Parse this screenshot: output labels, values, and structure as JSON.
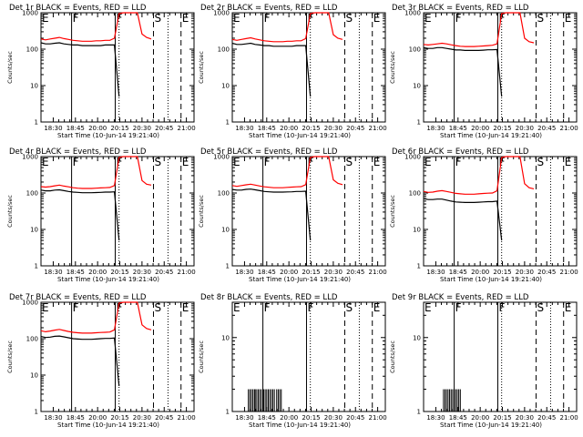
{
  "figure": {
    "type": "line",
    "y_scale": "log",
    "colors": {
      "events": "#000000",
      "lld": "#ff0000",
      "axes": "#000000",
      "background": "#ffffff"
    }
  },
  "chart_data": [
    {
      "type": "line",
      "title": "Det 1r  BLACK = Events, RED = LLD",
      "ylabel": "Counts/sec",
      "xlabel": "Start Time (10-Jun-14 19:21:40)",
      "xtick_labels": [
        "18:30",
        "18:45",
        "20:00",
        "20:15",
        "20:30",
        "20:45",
        "21:00"
      ],
      "ytick_labels": [
        "1",
        "10",
        "100",
        "1000"
      ],
      "ylim": [
        1,
        1000
      ],
      "markers": [
        {
          "label": "E",
          "style": "solid",
          "t": 0.0
        },
        {
          "label": "F",
          "style": "solid",
          "t": 0.2
        },
        {
          "label": "F",
          "style": "solid",
          "t": 0.485
        },
        {
          "label": "S",
          "style": "dashed",
          "t": 0.735
        },
        {
          "label": "E",
          "style": "dashed",
          "t": 0.915
        }
      ],
      "dotted_lines_t": [
        0.51,
        0.83
      ],
      "series": [
        {
          "name": "Events",
          "color": "#000000",
          "t_start": 0.0,
          "values": [
            150,
            140,
            140,
            145,
            150,
            140,
            135,
            130,
            130,
            125,
            125,
            125,
            125,
            125,
            130,
            130,
            130,
            5
          ]
        },
        {
          "name": "LLD",
          "color": "#ff0000",
          "t_start": 0.0,
          "values": [
            190,
            180,
            190,
            200,
            210,
            195,
            185,
            175,
            170,
            165,
            165,
            165,
            170,
            170,
            175,
            175,
            200,
            950,
            1000,
            1000,
            1000,
            1000,
            260,
            210,
            190
          ]
        }
      ]
    },
    {
      "type": "line",
      "title": "Det 2r  BLACK = Events, RED = LLD",
      "ylabel": "Counts/sec",
      "xlabel": "Start Time (10-Jun-14 19:21:40)",
      "xtick_labels": [
        "18:30",
        "18:45",
        "20:00",
        "20:15",
        "20:30",
        "20:45",
        "21:00"
      ],
      "ytick_labels": [
        "1",
        "10",
        "100",
        "1000"
      ],
      "ylim": [
        1,
        1000
      ],
      "markers": [
        {
          "label": "E",
          "style": "solid",
          "t": 0.0
        },
        {
          "label": "F",
          "style": "solid",
          "t": 0.2
        },
        {
          "label": "F",
          "style": "solid",
          "t": 0.485
        },
        {
          "label": "S",
          "style": "dashed",
          "t": 0.735
        },
        {
          "label": "E",
          "style": "dashed",
          "t": 0.915
        }
      ],
      "dotted_lines_t": [
        0.51,
        0.83
      ],
      "series": [
        {
          "name": "Events",
          "color": "#000000",
          "t_start": 0.0,
          "values": [
            145,
            135,
            135,
            140,
            145,
            135,
            130,
            125,
            125,
            120,
            120,
            120,
            120,
            120,
            125,
            125,
            125,
            5
          ]
        },
        {
          "name": "LLD",
          "color": "#ff0000",
          "t_start": 0.0,
          "values": [
            185,
            175,
            185,
            195,
            205,
            190,
            180,
            170,
            165,
            160,
            160,
            160,
            165,
            165,
            170,
            170,
            195,
            950,
            1000,
            1000,
            1000,
            1000,
            250,
            200,
            185
          ]
        }
      ]
    },
    {
      "type": "line",
      "title": "Det 3r  BLACK = Events, RED = LLD",
      "ylabel": "Counts/sec",
      "xlabel": "Start Time (10-Jun-14 19:21:40)",
      "xtick_labels": [
        "18:30",
        "18:45",
        "20:00",
        "20:15",
        "20:30",
        "20:45",
        "21:00"
      ],
      "ytick_labels": [
        "1",
        "10",
        "100",
        "1000"
      ],
      "ylim": [
        1,
        1000
      ],
      "markers": [
        {
          "label": "E",
          "style": "solid",
          "t": 0.0
        },
        {
          "label": "F",
          "style": "solid",
          "t": 0.2
        },
        {
          "label": "F",
          "style": "solid",
          "t": 0.485
        },
        {
          "label": "S",
          "style": "dashed",
          "t": 0.735
        },
        {
          "label": "E",
          "style": "dashed",
          "t": 0.915
        }
      ],
      "dotted_lines_t": [
        0.51,
        0.83
      ],
      "series": [
        {
          "name": "Events",
          "color": "#000000",
          "t_start": 0.0,
          "values": [
            110,
            105,
            105,
            110,
            110,
            105,
            100,
            95,
            95,
            92,
            92,
            92,
            92,
            94,
            96,
            96,
            98,
            5
          ]
        },
        {
          "name": "LLD",
          "color": "#ff0000",
          "t_start": 0.0,
          "values": [
            135,
            130,
            135,
            140,
            145,
            140,
            132,
            125,
            120,
            118,
            118,
            118,
            120,
            122,
            125,
            128,
            140,
            950,
            1000,
            1000,
            1000,
            1000,
            200,
            160,
            150
          ]
        }
      ]
    },
    {
      "type": "line",
      "title": "Det 4r  BLACK = Events, RED = LLD",
      "ylabel": "Counts/sec",
      "xlabel": "Start Time (10-Jun-14 19:21:40)",
      "xtick_labels": [
        "18:30",
        "18:45",
        "20:00",
        "20:15",
        "20:30",
        "20:45",
        "21:00"
      ],
      "ytick_labels": [
        "1",
        "10",
        "100",
        "1000"
      ],
      "ylim": [
        1,
        1000
      ],
      "markers": [
        {
          "label": "E",
          "style": "solid",
          "t": 0.0
        },
        {
          "label": "F",
          "style": "solid",
          "t": 0.2
        },
        {
          "label": "F",
          "style": "solid",
          "t": 0.485
        },
        {
          "label": "S",
          "style": "dashed",
          "t": 0.735
        },
        {
          "label": "E",
          "style": "dashed",
          "t": 0.915
        }
      ],
      "dotted_lines_t": [
        0.51,
        0.83
      ],
      "series": [
        {
          "name": "Events",
          "color": "#000000",
          "t_start": 0.0,
          "values": [
            120,
            115,
            115,
            120,
            122,
            116,
            110,
            106,
            104,
            102,
            102,
            102,
            103,
            104,
            106,
            106,
            108,
            5
          ]
        },
        {
          "name": "LLD",
          "color": "#ff0000",
          "t_start": 0.0,
          "values": [
            150,
            145,
            150,
            158,
            165,
            155,
            148,
            140,
            136,
            133,
            133,
            133,
            136,
            138,
            140,
            142,
            160,
            950,
            1000,
            1000,
            1000,
            1000,
            220,
            175,
            165
          ]
        }
      ]
    },
    {
      "type": "line",
      "title": "Det 5r  BLACK = Events, RED = LLD",
      "ylabel": "Counts/sec",
      "xlabel": "Start Time (10-Jun-14 19:21:40)",
      "xtick_labels": [
        "18:30",
        "18:45",
        "20:00",
        "20:15",
        "20:30",
        "20:45",
        "21:00"
      ],
      "ytick_labels": [
        "1",
        "10",
        "100",
        "1000"
      ],
      "ylim": [
        1,
        1000
      ],
      "markers": [
        {
          "label": "E",
          "style": "solid",
          "t": 0.0
        },
        {
          "label": "F",
          "style": "solid",
          "t": 0.2
        },
        {
          "label": "F",
          "style": "solid",
          "t": 0.485
        },
        {
          "label": "S",
          "style": "dashed",
          "t": 0.735
        },
        {
          "label": "E",
          "style": "dashed",
          "t": 0.915
        }
      ],
      "dotted_lines_t": [
        0.51,
        0.83
      ],
      "series": [
        {
          "name": "Events",
          "color": "#000000",
          "t_start": 0.0,
          "values": [
            125,
            120,
            120,
            126,
            128,
            122,
            116,
            110,
            108,
            106,
            106,
            106,
            107,
            108,
            110,
            110,
            112,
            5
          ]
        },
        {
          "name": "LLD",
          "color": "#ff0000",
          "t_start": 0.0,
          "values": [
            160,
            152,
            160,
            168,
            175,
            165,
            156,
            148,
            144,
            140,
            140,
            140,
            143,
            145,
            148,
            150,
            170,
            950,
            1000,
            1000,
            1000,
            1000,
            230,
            185,
            170
          ]
        }
      ]
    },
    {
      "type": "line",
      "title": "Det 6r  BLACK = Events, RED = LLD",
      "ylabel": "Counts/sec",
      "xlabel": "Start Time (10-Jun-14 19:21:40)",
      "xtick_labels": [
        "18:30",
        "18:45",
        "20:00",
        "20:15",
        "20:30",
        "20:45",
        "21:00"
      ],
      "ytick_labels": [
        "1",
        "10",
        "100",
        "1000"
      ],
      "ylim": [
        1,
        1000
      ],
      "markers": [
        {
          "label": "E",
          "style": "solid",
          "t": 0.0
        },
        {
          "label": "F",
          "style": "solid",
          "t": 0.2
        },
        {
          "label": "F",
          "style": "solid",
          "t": 0.485
        },
        {
          "label": "S",
          "style": "dashed",
          "t": 0.735
        },
        {
          "label": "E",
          "style": "dashed",
          "t": 0.915
        }
      ],
      "dotted_lines_t": [
        0.51,
        0.83
      ],
      "series": [
        {
          "name": "Events",
          "color": "#000000",
          "t_start": 0.0,
          "values": [
            70,
            66,
            66,
            68,
            68,
            64,
            60,
            57,
            56,
            55,
            55,
            55,
            56,
            57,
            58,
            58,
            60,
            5
          ]
        },
        {
          "name": "LLD",
          "color": "#ff0000",
          "t_start": 0.0,
          "values": [
            110,
            104,
            106,
            112,
            116,
            110,
            104,
            98,
            95,
            93,
            93,
            93,
            95,
            97,
            99,
            100,
            115,
            950,
            1000,
            1000,
            1000,
            1000,
            180,
            140,
            130
          ]
        }
      ]
    },
    {
      "type": "line",
      "title": "Det 7r  BLACK = Events, RED = LLD",
      "ylabel": "Counts/sec",
      "xlabel": "Start Time (10-Jun-14 19:21:40)",
      "xtick_labels": [
        "18:30",
        "18:45",
        "20:00",
        "20:15",
        "20:30",
        "20:45",
        "21:00"
      ],
      "ytick_labels": [
        "1",
        "10",
        "100",
        "1000"
      ],
      "ylim": [
        1,
        1000
      ],
      "markers": [
        {
          "label": "E",
          "style": "solid",
          "t": 0.0
        },
        {
          "label": "F",
          "style": "solid",
          "t": 0.2
        },
        {
          "label": "F",
          "style": "solid",
          "t": 0.485
        },
        {
          "label": "S",
          "style": "dashed",
          "t": 0.735
        },
        {
          "label": "E",
          "style": "dashed",
          "t": 0.915
        }
      ],
      "dotted_lines_t": [
        0.51,
        0.83
      ],
      "series": [
        {
          "name": "Events",
          "color": "#000000",
          "t_start": 0.0,
          "values": [
            115,
            108,
            110,
            116,
            118,
            112,
            106,
            100,
            98,
            96,
            96,
            96,
            98,
            100,
            102,
            102,
            104,
            5
          ]
        },
        {
          "name": "LLD",
          "color": "#ff0000",
          "t_start": 0.0,
          "values": [
            165,
            155,
            162,
            172,
            180,
            168,
            158,
            150,
            145,
            142,
            142,
            142,
            145,
            148,
            150,
            152,
            175,
            950,
            1000,
            1000,
            1000,
            1000,
            240,
            190,
            175
          ]
        }
      ]
    },
    {
      "type": "line",
      "title": "Det 8r  BLACK = Events, RED = LLD",
      "ylabel": "Counts/sec",
      "xlabel": "Start Time (10-Jun-14 19:21:40)",
      "xtick_labels": [
        "18:30",
        "18:45",
        "20:00",
        "20:15",
        "20:30",
        "20:45",
        "21:00"
      ],
      "ytick_labels": [
        "1",
        "10"
      ],
      "ylim": [
        1,
        30
      ],
      "markers": [
        {
          "label": "E",
          "style": "solid",
          "t": 0.0
        },
        {
          "label": "F",
          "style": "solid",
          "t": 0.2
        },
        {
          "label": "F",
          "style": "solid",
          "t": 0.485
        },
        {
          "label": "S",
          "style": "dashed",
          "t": 0.735
        },
        {
          "label": "E",
          "style": "dashed",
          "t": 0.915
        }
      ],
      "dotted_lines_t": [
        0.51,
        0.83
      ],
      "series": [
        {
          "name": "Events",
          "color": "#000000",
          "spikes": true,
          "value": 2,
          "t_values": [
            0.105,
            0.115,
            0.125,
            0.135,
            0.145,
            0.15,
            0.16,
            0.17,
            0.18,
            0.19,
            0.205,
            0.215,
            0.225,
            0.235,
            0.245,
            0.255,
            0.265,
            0.275,
            0.29,
            0.3,
            0.31,
            0.32
          ]
        }
      ]
    },
    {
      "type": "line",
      "title": "Det 9r  BLACK = Events, RED = LLD",
      "ylabel": "Counts/sec",
      "xlabel": "Start Time (10-Jun-14 19:21:40)",
      "xtick_labels": [
        "18:30",
        "18:45",
        "20:00",
        "20:15",
        "20:30",
        "20:45",
        "21:00"
      ],
      "ytick_labels": [
        "1",
        "10"
      ],
      "ylim": [
        1,
        30
      ],
      "markers": [
        {
          "label": "E",
          "style": "solid",
          "t": 0.0
        },
        {
          "label": "F",
          "style": "solid",
          "t": 0.2
        },
        {
          "label": "F",
          "style": "solid",
          "t": 0.485
        },
        {
          "label": "S",
          "style": "dashed",
          "t": 0.735
        },
        {
          "label": "E",
          "style": "dashed",
          "t": 0.915
        }
      ],
      "dotted_lines_t": [
        0.51,
        0.83
      ],
      "series": [
        {
          "name": "Events",
          "color": "#000000",
          "spikes": true,
          "value": 2,
          "t_values": [
            0.13,
            0.14,
            0.15,
            0.16,
            0.17,
            0.18,
            0.19,
            0.2,
            0.21,
            0.22,
            0.23,
            0.24
          ]
        }
      ]
    }
  ]
}
